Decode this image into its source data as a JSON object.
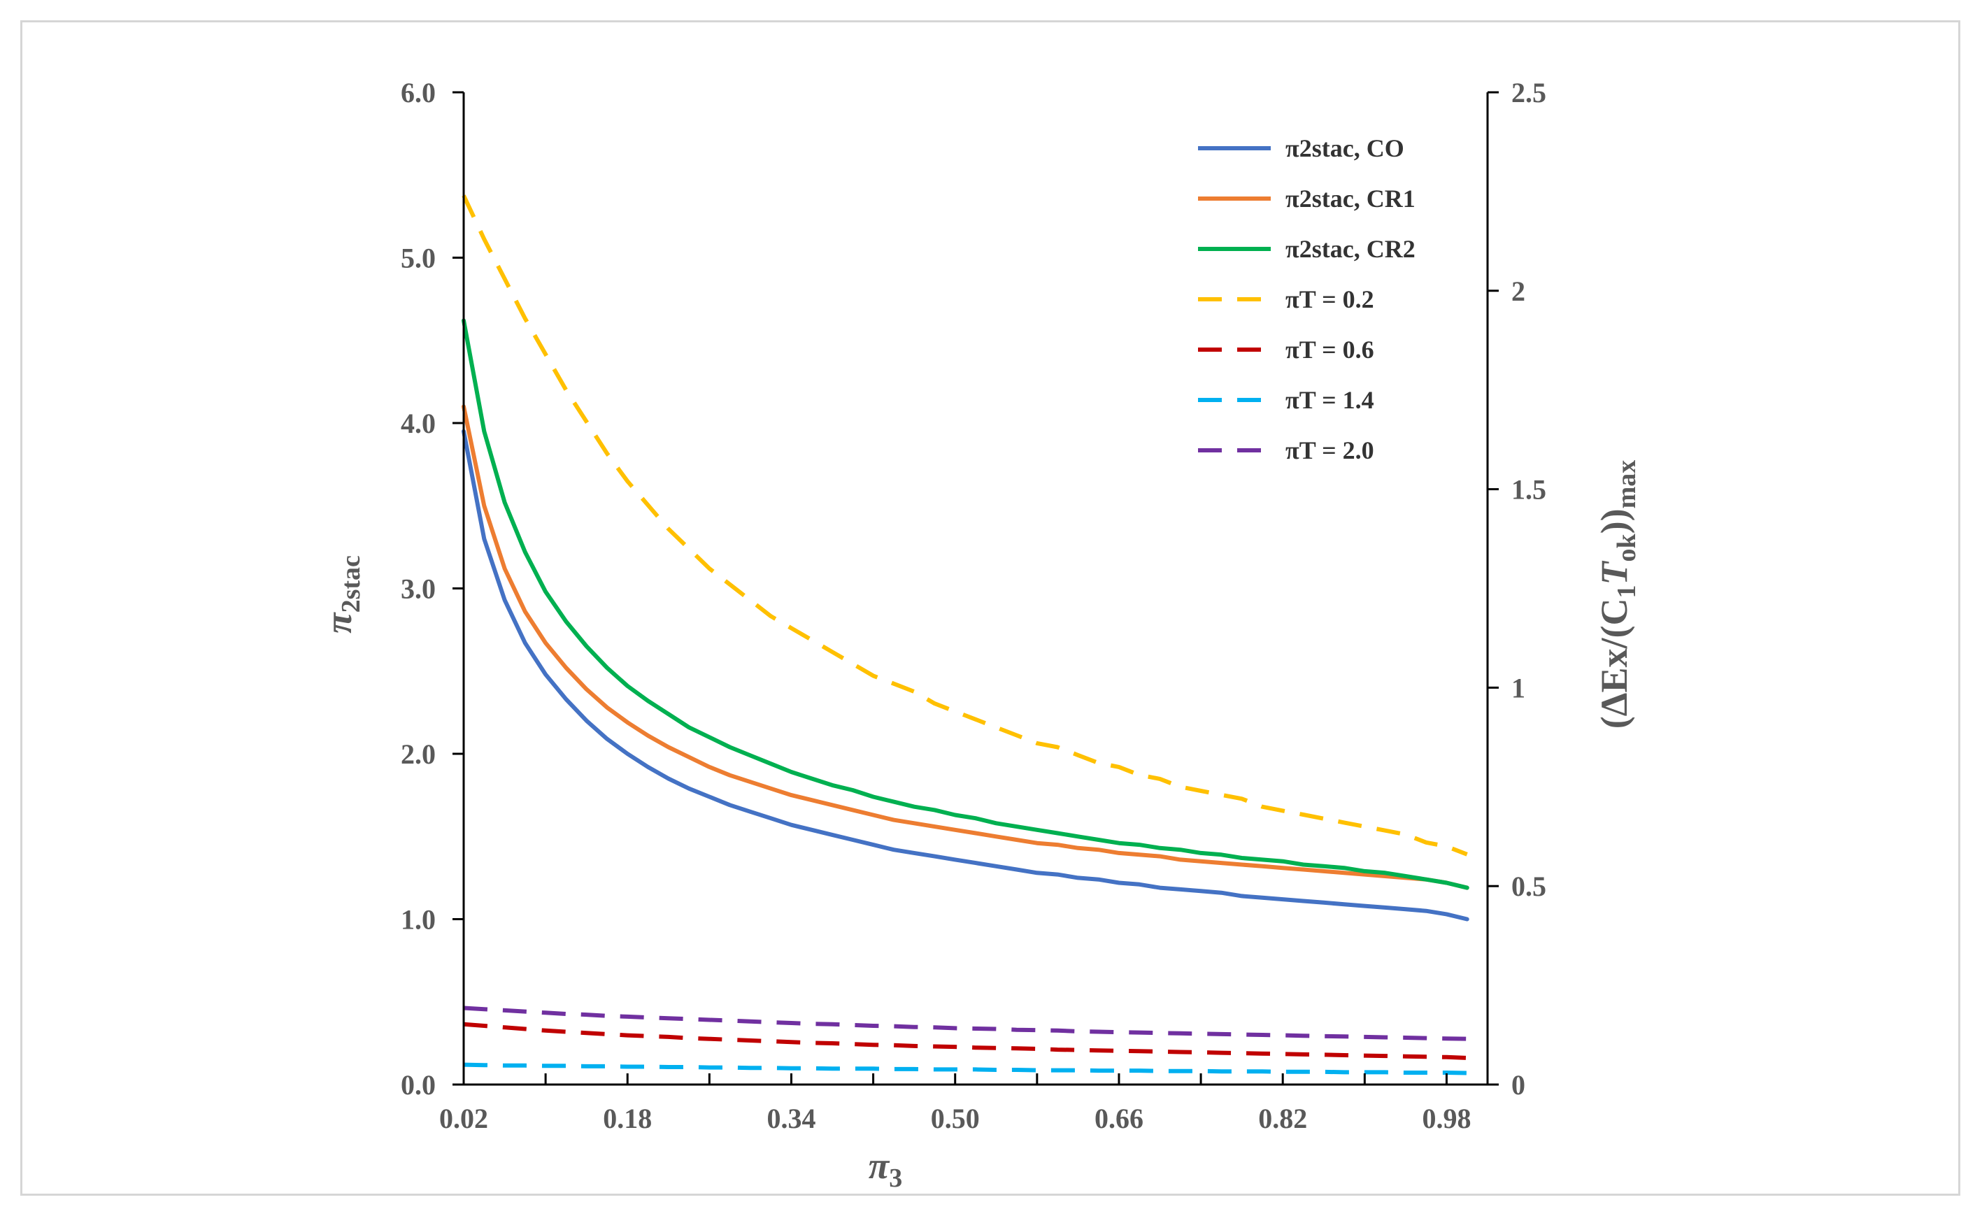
{
  "chart_data": {
    "type": "line",
    "title": "",
    "x": [
      0.02,
      0.04,
      0.06,
      0.08,
      0.1,
      0.12,
      0.14,
      0.16,
      0.18,
      0.2,
      0.22,
      0.24,
      0.26,
      0.28,
      0.3,
      0.32,
      0.34,
      0.36,
      0.38,
      0.4,
      0.42,
      0.44,
      0.46,
      0.48,
      0.5,
      0.52,
      0.54,
      0.56,
      0.58,
      0.6,
      0.62,
      0.64,
      0.66,
      0.68,
      0.7,
      0.72,
      0.74,
      0.76,
      0.78,
      0.8,
      0.82,
      0.84,
      0.86,
      0.88,
      0.9,
      0.92,
      0.94,
      0.96,
      0.98,
      1.0
    ],
    "xlabel": {
      "base": "π",
      "sub": "3"
    },
    "ylabel_left": {
      "base": "π",
      "sub": "2stac"
    },
    "ylabel_right": {
      "prefix": "(ΔEx/(C",
      "sub1": "1",
      "mid": "T",
      "sub2": "ok",
      "close": "))",
      "sub3": "max"
    },
    "xlim": [
      0.02,
      1.02
    ],
    "ylim_left": [
      0,
      6
    ],
    "ylim_right": [
      0,
      2.5
    ],
    "x_ticks": [
      "0.02",
      "0.18",
      "0.34",
      "0.50",
      "0.66",
      "0.82",
      "0.98"
    ],
    "y_left_ticks": [
      "0.0",
      "1.0",
      "2.0",
      "3.0",
      "4.0",
      "5.0",
      "6.0"
    ],
    "y_right_ticks": [
      "0",
      "0.5",
      "1",
      "1.5",
      "2",
      "2.5"
    ],
    "series": [
      {
        "name": "π2stac, CO",
        "axis": "left",
        "style": "solid",
        "color": "#4472C4",
        "values": [
          3.95,
          3.3,
          2.93,
          2.67,
          2.48,
          2.33,
          2.2,
          2.09,
          2.0,
          1.92,
          1.85,
          1.79,
          1.74,
          1.69,
          1.65,
          1.61,
          1.57,
          1.54,
          1.51,
          1.48,
          1.45,
          1.42,
          1.4,
          1.38,
          1.36,
          1.34,
          1.32,
          1.3,
          1.28,
          1.27,
          1.25,
          1.24,
          1.22,
          1.21,
          1.19,
          1.18,
          1.17,
          1.16,
          1.14,
          1.13,
          1.12,
          1.11,
          1.1,
          1.09,
          1.08,
          1.07,
          1.06,
          1.05,
          1.03,
          1.0
        ]
      },
      {
        "name": "π2stac, CR1",
        "axis": "left",
        "style": "solid",
        "color": "#ED7D31",
        "values": [
          4.1,
          3.5,
          3.12,
          2.86,
          2.67,
          2.52,
          2.39,
          2.28,
          2.19,
          2.11,
          2.04,
          1.98,
          1.92,
          1.87,
          1.83,
          1.79,
          1.75,
          1.72,
          1.69,
          1.66,
          1.63,
          1.6,
          1.58,
          1.56,
          1.54,
          1.52,
          1.5,
          1.48,
          1.46,
          1.45,
          1.43,
          1.42,
          1.4,
          1.39,
          1.38,
          1.36,
          1.35,
          1.34,
          1.33,
          1.32,
          1.31,
          1.3,
          1.29,
          1.28,
          1.27,
          1.26,
          1.25,
          1.24,
          1.22,
          1.19
        ]
      },
      {
        "name": "π2stac, CR2",
        "axis": "left",
        "style": "solid",
        "color": "#00B050",
        "values": [
          4.62,
          3.95,
          3.52,
          3.22,
          2.98,
          2.8,
          2.65,
          2.52,
          2.41,
          2.32,
          2.24,
          2.16,
          2.1,
          2.04,
          1.99,
          1.94,
          1.89,
          1.85,
          1.81,
          1.78,
          1.74,
          1.71,
          1.68,
          1.66,
          1.63,
          1.61,
          1.58,
          1.56,
          1.54,
          1.52,
          1.5,
          1.48,
          1.46,
          1.45,
          1.43,
          1.42,
          1.4,
          1.39,
          1.37,
          1.36,
          1.35,
          1.33,
          1.32,
          1.31,
          1.29,
          1.28,
          1.26,
          1.24,
          1.22,
          1.19
        ]
      },
      {
        "name": "πT = 0.2",
        "axis": "right",
        "style": "dashed",
        "color": "#FFC000",
        "values": [
          2.24,
          2.13,
          2.03,
          1.93,
          1.84,
          1.75,
          1.67,
          1.59,
          1.52,
          1.46,
          1.4,
          1.35,
          1.3,
          1.26,
          1.22,
          1.18,
          1.15,
          1.12,
          1.09,
          1.06,
          1.03,
          1.01,
          0.99,
          0.96,
          0.94,
          0.92,
          0.9,
          0.88,
          0.86,
          0.85,
          0.83,
          0.81,
          0.8,
          0.78,
          0.77,
          0.75,
          0.74,
          0.73,
          0.72,
          0.7,
          0.69,
          0.68,
          0.67,
          0.66,
          0.65,
          0.64,
          0.63,
          0.61,
          0.6,
          0.58
        ]
      },
      {
        "name": "πT = 0.6",
        "axis": "right",
        "style": "dashed",
        "color": "#C00000",
        "values": [
          0.152,
          0.148,
          0.144,
          0.14,
          0.136,
          0.133,
          0.13,
          0.127,
          0.124,
          0.122,
          0.12,
          0.117,
          0.115,
          0.113,
          0.111,
          0.109,
          0.107,
          0.105,
          0.104,
          0.102,
          0.1,
          0.099,
          0.097,
          0.096,
          0.095,
          0.093,
          0.092,
          0.091,
          0.09,
          0.088,
          0.087,
          0.086,
          0.085,
          0.084,
          0.083,
          0.082,
          0.081,
          0.08,
          0.079,
          0.078,
          0.077,
          0.076,
          0.075,
          0.074,
          0.073,
          0.072,
          0.071,
          0.07,
          0.069,
          0.067
        ]
      },
      {
        "name": "πT = 1.4",
        "axis": "right",
        "style": "dashed",
        "color": "#00B0F0",
        "values": [
          0.05,
          0.049,
          0.048,
          0.048,
          0.047,
          0.047,
          0.046,
          0.046,
          0.045,
          0.045,
          0.044,
          0.044,
          0.043,
          0.043,
          0.042,
          0.042,
          0.041,
          0.041,
          0.04,
          0.04,
          0.04,
          0.039,
          0.039,
          0.038,
          0.038,
          0.038,
          0.037,
          0.037,
          0.036,
          0.036,
          0.036,
          0.035,
          0.035,
          0.035,
          0.034,
          0.034,
          0.034,
          0.033,
          0.033,
          0.033,
          0.032,
          0.032,
          0.032,
          0.031,
          0.031,
          0.031,
          0.03,
          0.03,
          0.03,
          0.029
        ]
      },
      {
        "name": "πT = 2.0",
        "axis": "right",
        "style": "dashed",
        "color": "#7030A0",
        "values": [
          0.193,
          0.19,
          0.187,
          0.184,
          0.181,
          0.178,
          0.176,
          0.173,
          0.171,
          0.169,
          0.167,
          0.165,
          0.163,
          0.161,
          0.159,
          0.157,
          0.155,
          0.153,
          0.152,
          0.15,
          0.148,
          0.147,
          0.145,
          0.144,
          0.142,
          0.141,
          0.14,
          0.138,
          0.137,
          0.136,
          0.134,
          0.133,
          0.132,
          0.131,
          0.13,
          0.129,
          0.128,
          0.127,
          0.126,
          0.125,
          0.124,
          0.123,
          0.122,
          0.121,
          0.12,
          0.119,
          0.118,
          0.117,
          0.116,
          0.115
        ]
      }
    ],
    "legend": "top-right"
  }
}
